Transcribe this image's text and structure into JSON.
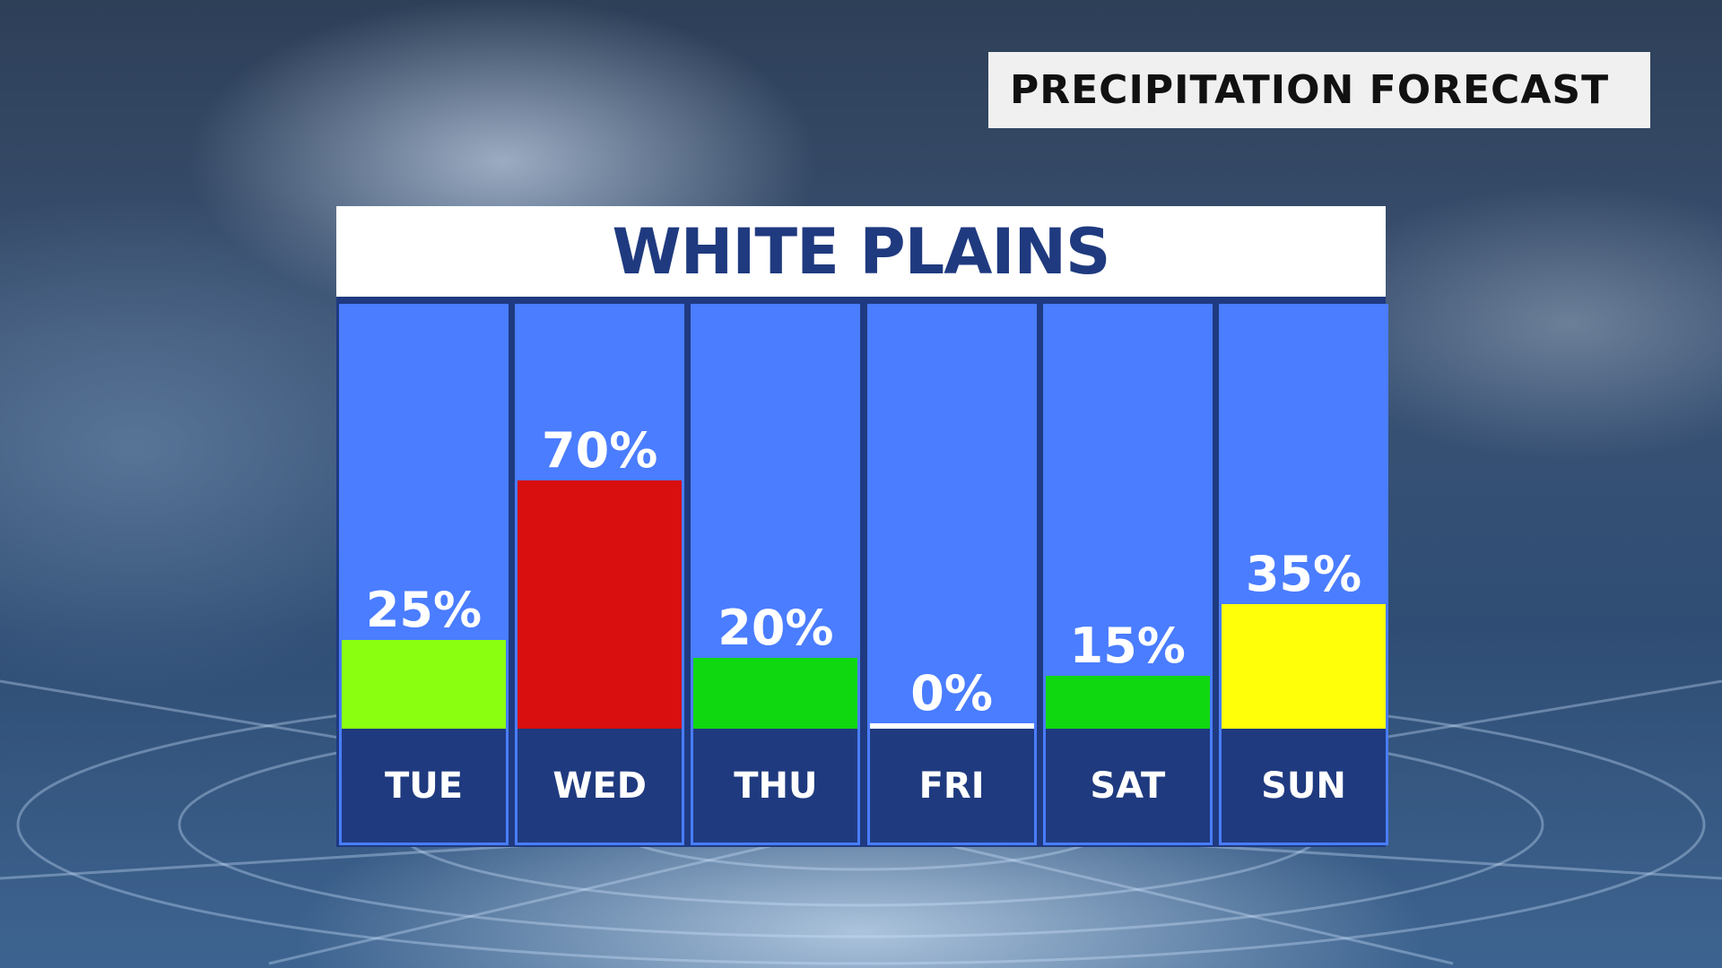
{
  "title": "PRECIPITATION FORECAST",
  "chart_data": {
    "type": "bar",
    "title": "WHITE PLAINS",
    "categories": [
      "TUE",
      "WED",
      "THU",
      "FRI",
      "SAT",
      "SUN"
    ],
    "values": [
      25,
      70,
      20,
      0,
      15,
      35
    ],
    "labels": [
      "25%",
      "70%",
      "20%",
      "0%",
      "15%",
      "35%"
    ],
    "colors": [
      "#8aff10",
      "#d90e0e",
      "#10d810",
      "#ffffff",
      "#10d810",
      "#ffff0a"
    ],
    "ylim": [
      0,
      100
    ],
    "unit": "%",
    "grid": false
  },
  "colors": {
    "column": "#4a7dff",
    "navy": "#1f3a7f"
  }
}
